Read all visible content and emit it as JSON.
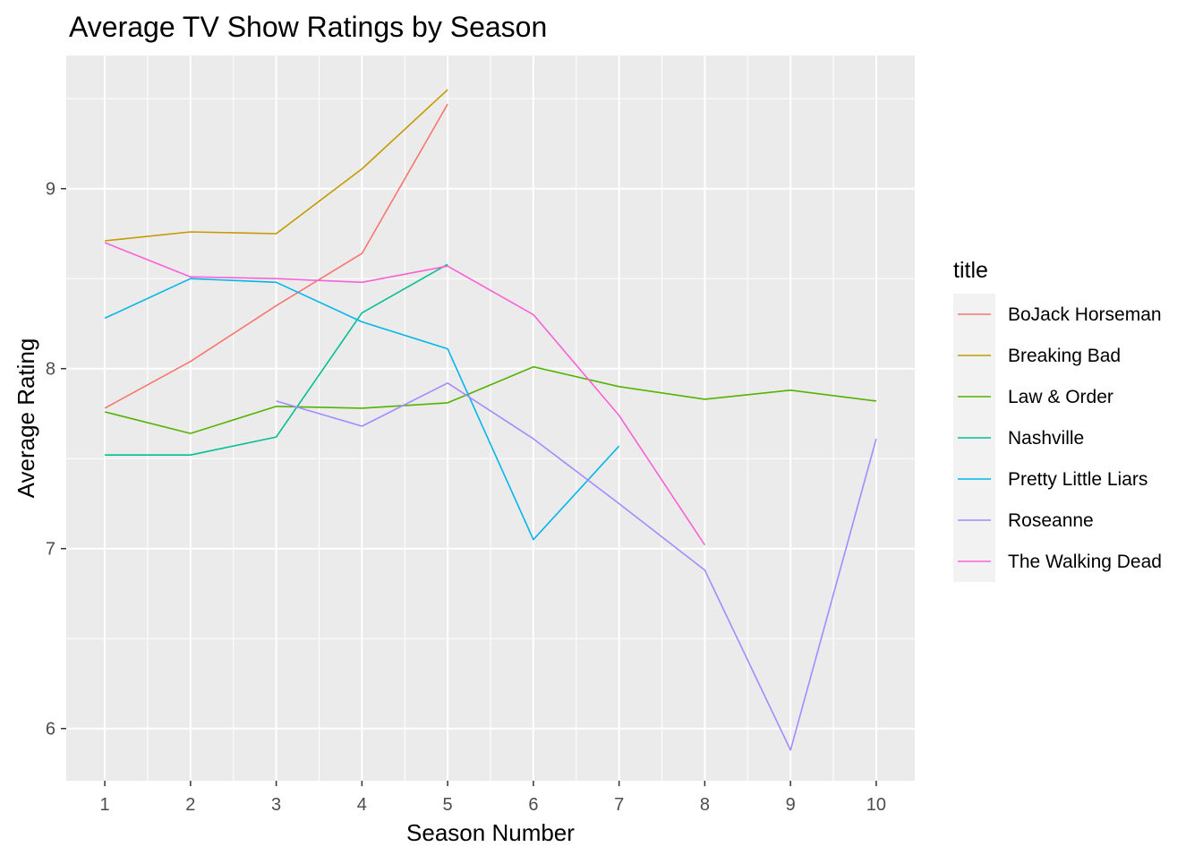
{
  "chart_data": {
    "type": "line",
    "title": "Average TV Show Ratings by Season",
    "xlabel": "Season Number",
    "ylabel": "Average Rating",
    "x": [
      1,
      2,
      3,
      4,
      5,
      6,
      7,
      8,
      9,
      10
    ],
    "x_ticks": [
      "1",
      "2",
      "3",
      "4",
      "5",
      "6",
      "7",
      "8",
      "9",
      "10"
    ],
    "y_ticks": [
      "6",
      "7",
      "8",
      "9"
    ],
    "xlim": [
      0.55,
      10.45
    ],
    "ylim": [
      5.71,
      9.74
    ],
    "grid": true,
    "legend": {
      "title": "title",
      "position": "right"
    },
    "series": [
      {
        "name": "BoJack Horseman",
        "color": "#F8766D",
        "x": [
          1,
          2,
          3,
          4,
          5
        ],
        "values": [
          7.78,
          8.04,
          8.35,
          8.64,
          9.47
        ]
      },
      {
        "name": "Breaking Bad",
        "color": "#C49A00",
        "x": [
          1,
          2,
          3,
          4,
          5
        ],
        "values": [
          8.71,
          8.76,
          8.75,
          9.11,
          9.55
        ]
      },
      {
        "name": "Law & Order",
        "color": "#53B400",
        "x": [
          1,
          2,
          3,
          4,
          5,
          6,
          7,
          8,
          9,
          10
        ],
        "values": [
          7.76,
          7.64,
          7.79,
          7.78,
          7.81,
          8.01,
          7.9,
          7.83,
          7.88,
          7.82
        ]
      },
      {
        "name": "Nashville",
        "color": "#00C094",
        "x": [
          1,
          2,
          3,
          4,
          5
        ],
        "values": [
          7.52,
          7.52,
          7.62,
          8.31,
          8.58
        ]
      },
      {
        "name": "Pretty Little Liars",
        "color": "#00B6EB",
        "x": [
          1,
          2,
          3,
          4,
          5,
          6,
          7
        ],
        "values": [
          8.28,
          8.5,
          8.48,
          8.26,
          8.11,
          7.05,
          7.57
        ]
      },
      {
        "name": "Roseanne",
        "color": "#A58AFF",
        "x": [
          3,
          4,
          5,
          6,
          7,
          8,
          9,
          10
        ],
        "values": [
          7.82,
          7.68,
          7.92,
          7.61,
          7.25,
          6.88,
          5.88,
          7.61
        ]
      },
      {
        "name": "The Walking Dead",
        "color": "#FB61D7",
        "x": [
          1,
          2,
          3,
          4,
          5,
          6,
          7,
          8
        ],
        "values": [
          8.7,
          8.51,
          8.5,
          8.48,
          8.57,
          8.3,
          7.74,
          7.02
        ]
      }
    ]
  }
}
